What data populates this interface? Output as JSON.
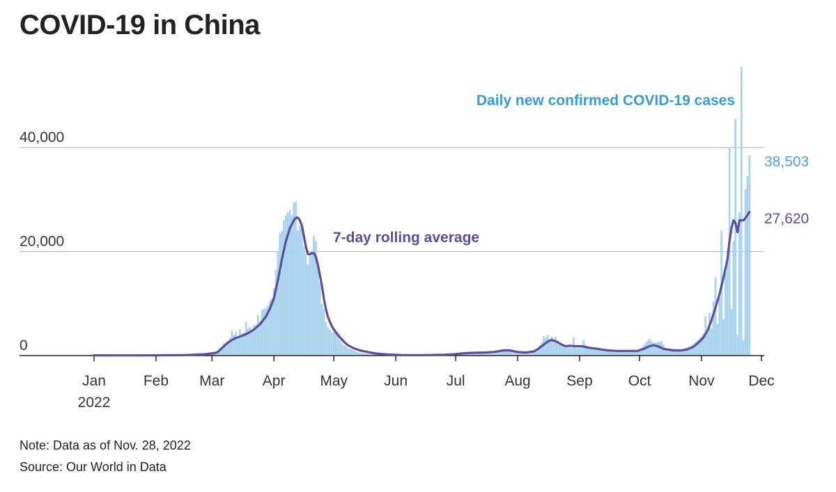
{
  "title": "COVID-19 in China",
  "note": "Note: Data as of Nov. 28, 2022",
  "source": "Source: Our World in Data",
  "colors": {
    "bars": "#a9d3ef",
    "line": "#5b4e9c",
    "bar_label": "#3a9ad9",
    "grid": "#bdbdbd",
    "axis": "#222222"
  },
  "chart_data": {
    "type": "bar+line",
    "title": "COVID-19 in China",
    "xlabel": "",
    "ylabel": "",
    "ylim": [
      0,
      55000
    ],
    "grid": true,
    "y_ticks": [
      {
        "value": 0,
        "label": "0"
      },
      {
        "value": 20000,
        "label": "20,000"
      },
      {
        "value": 40000,
        "label": "40,000"
      }
    ],
    "x_ticks": [
      {
        "day": 0,
        "label": "Jan",
        "sublabel": "2022"
      },
      {
        "day": 31,
        "label": "Feb"
      },
      {
        "day": 59,
        "label": "Mar"
      },
      {
        "day": 90,
        "label": "Apr"
      },
      {
        "day": 120,
        "label": "May"
      },
      {
        "day": 151,
        "label": "Jun"
      },
      {
        "day": 181,
        "label": "Jul"
      },
      {
        "day": 212,
        "label": "Aug"
      },
      {
        "day": 243,
        "label": "Sep"
      },
      {
        "day": 273,
        "label": "Oct"
      },
      {
        "day": 304,
        "label": "Nov"
      },
      {
        "day": 334,
        "label": "Dec"
      }
    ],
    "series": [
      {
        "name": "Daily new confirmed COVID-19 cases",
        "type": "bar",
        "label": "Daily new confirmed COVID-19 cases",
        "end_label": "38,503",
        "points": [
          [
            0,
            50
          ],
          [
            5,
            60
          ],
          [
            10,
            80
          ],
          [
            15,
            90
          ],
          [
            20,
            60
          ],
          [
            25,
            50
          ],
          [
            30,
            60
          ],
          [
            35,
            70
          ],
          [
            40,
            80
          ],
          [
            45,
            100
          ],
          [
            50,
            120
          ],
          [
            55,
            200
          ],
          [
            58,
            300
          ],
          [
            60,
            350
          ],
          [
            62,
            600
          ],
          [
            63,
            1000
          ],
          [
            64,
            1400
          ],
          [
            65,
            2400
          ],
          [
            66,
            2000
          ],
          [
            67,
            2800
          ],
          [
            68,
            3400
          ],
          [
            69,
            4800
          ],
          [
            70,
            4000
          ],
          [
            71,
            4500
          ],
          [
            72,
            3500
          ],
          [
            73,
            5000
          ],
          [
            74,
            4200
          ],
          [
            75,
            4400
          ],
          [
            76,
            6500
          ],
          [
            77,
            5200
          ],
          [
            78,
            5500
          ],
          [
            79,
            4800
          ],
          [
            80,
            5800
          ],
          [
            81,
            6000
          ],
          [
            82,
            7800
          ],
          [
            83,
            6600
          ],
          [
            84,
            8800
          ],
          [
            85,
            9000
          ],
          [
            86,
            9200
          ],
          [
            87,
            9600
          ],
          [
            88,
            10500
          ],
          [
            89,
            11000
          ],
          [
            90,
            13000
          ],
          [
            91,
            16500
          ],
          [
            92,
            20000
          ],
          [
            93,
            23500
          ],
          [
            94,
            24000
          ],
          [
            95,
            26000
          ],
          [
            96,
            27000
          ],
          [
            97,
            27500
          ],
          [
            98,
            28000
          ],
          [
            99,
            27000
          ],
          [
            100,
            29500
          ],
          [
            101,
            29500
          ],
          [
            102,
            24000
          ],
          [
            103,
            25000
          ],
          [
            104,
            24500
          ],
          [
            105,
            21000
          ],
          [
            106,
            19500
          ],
          [
            107,
            17500
          ],
          [
            108,
            19500
          ],
          [
            109,
            20000
          ],
          [
            110,
            23000
          ],
          [
            111,
            22000
          ],
          [
            112,
            18000
          ],
          [
            113,
            14000
          ],
          [
            114,
            10000
          ],
          [
            115,
            9000
          ],
          [
            116,
            6500
          ],
          [
            117,
            5500
          ],
          [
            118,
            5000
          ],
          [
            119,
            4500
          ],
          [
            120,
            4500
          ],
          [
            121,
            4300
          ],
          [
            122,
            4100
          ],
          [
            123,
            3000
          ],
          [
            124,
            2400
          ],
          [
            125,
            2000
          ],
          [
            126,
            1800
          ],
          [
            127,
            1400
          ],
          [
            128,
            1300
          ],
          [
            129,
            1200
          ],
          [
            130,
            1000
          ],
          [
            132,
            700
          ],
          [
            134,
            500
          ],
          [
            137,
            400
          ],
          [
            140,
            300
          ],
          [
            145,
            200
          ],
          [
            150,
            150
          ],
          [
            155,
            100
          ],
          [
            160,
            100
          ],
          [
            165,
            100
          ],
          [
            170,
            120
          ],
          [
            175,
            150
          ],
          [
            180,
            250
          ],
          [
            185,
            400
          ],
          [
            190,
            500
          ],
          [
            195,
            500
          ],
          [
            200,
            600
          ],
          [
            203,
            900
          ],
          [
            205,
            1100
          ],
          [
            208,
            1200
          ],
          [
            210,
            1000
          ],
          [
            212,
            600
          ],
          [
            215,
            500
          ],
          [
            218,
            700
          ],
          [
            220,
            1000
          ],
          [
            222,
            1500
          ],
          [
            224,
            2500
          ],
          [
            225,
            3800
          ],
          [
            226,
            3500
          ],
          [
            227,
            4000
          ],
          [
            228,
            3200
          ],
          [
            229,
            3700
          ],
          [
            230,
            3000
          ],
          [
            231,
            3600
          ],
          [
            232,
            2500
          ],
          [
            233,
            2000
          ],
          [
            234,
            1800
          ],
          [
            235,
            1700
          ],
          [
            236,
            1500
          ],
          [
            237,
            1600
          ],
          [
            238,
            1800
          ],
          [
            239,
            1400
          ],
          [
            240,
            3500
          ],
          [
            241,
            1600
          ],
          [
            242,
            1400
          ],
          [
            243,
            2000
          ],
          [
            244,
            1500
          ],
          [
            245,
            3000
          ],
          [
            246,
            2000
          ],
          [
            247,
            1800
          ],
          [
            248,
            1700
          ],
          [
            250,
            1500
          ],
          [
            255,
            1200
          ],
          [
            260,
            900
          ],
          [
            265,
            900
          ],
          [
            270,
            1000
          ],
          [
            272,
            1000
          ],
          [
            274,
            1500
          ],
          [
            276,
            2500
          ],
          [
            278,
            3200
          ],
          [
            280,
            2400
          ],
          [
            282,
            2600
          ],
          [
            284,
            2800
          ],
          [
            286,
            1500
          ],
          [
            288,
            1200
          ],
          [
            290,
            1000
          ],
          [
            292,
            1000
          ],
          [
            294,
            1200
          ],
          [
            296,
            1500
          ],
          [
            298,
            1800
          ],
          [
            300,
            2300
          ],
          [
            302,
            2900
          ],
          [
            304,
            3700
          ],
          [
            305,
            4300
          ],
          [
            306,
            7500
          ],
          [
            307,
            4500
          ],
          [
            308,
            8200
          ],
          [
            309,
            5200
          ],
          [
            310,
            10500
          ],
          [
            311,
            15000
          ],
          [
            312,
            6000
          ],
          [
            313,
            11000
          ],
          [
            314,
            24000
          ],
          [
            315,
            7000
          ],
          [
            316,
            16000
          ],
          [
            317,
            18000
          ],
          [
            318,
            40000
          ],
          [
            319,
            9000
          ],
          [
            320,
            22000
          ],
          [
            321,
            45500
          ],
          [
            322,
            4000
          ],
          [
            323,
            27500
          ],
          [
            324,
            55500
          ],
          [
            325,
            3000
          ],
          [
            326,
            32000
          ],
          [
            327,
            34500
          ],
          [
            328,
            38503
          ]
        ]
      },
      {
        "name": "7-day rolling average",
        "type": "line",
        "label": "7-day rolling average",
        "end_label": "27,620",
        "points": [
          [
            0,
            50
          ],
          [
            15,
            40
          ],
          [
            30,
            60
          ],
          [
            45,
            100
          ],
          [
            55,
            250
          ],
          [
            60,
            450
          ],
          [
            62,
            700
          ],
          [
            63,
            1100
          ],
          [
            65,
            1800
          ],
          [
            67,
            2500
          ],
          [
            69,
            3000
          ],
          [
            71,
            3400
          ],
          [
            74,
            3800
          ],
          [
            77,
            4300
          ],
          [
            80,
            5000
          ],
          [
            83,
            6000
          ],
          [
            86,
            7500
          ],
          [
            88,
            9000
          ],
          [
            90,
            11000
          ],
          [
            92,
            14500
          ],
          [
            94,
            18500
          ],
          [
            96,
            22000
          ],
          [
            98,
            24500
          ],
          [
            100,
            26000
          ],
          [
            101,
            26500
          ],
          [
            102,
            26500
          ],
          [
            103,
            26000
          ],
          [
            104,
            25000
          ],
          [
            105,
            23000
          ],
          [
            106,
            21000
          ],
          [
            107,
            19500
          ],
          [
            108,
            19500
          ],
          [
            109,
            19700
          ],
          [
            110,
            19700
          ],
          [
            111,
            19000
          ],
          [
            112,
            17500
          ],
          [
            113,
            15500
          ],
          [
            114,
            13500
          ],
          [
            115,
            11000
          ],
          [
            116,
            9000
          ],
          [
            117,
            7500
          ],
          [
            118,
            6500
          ],
          [
            119,
            5700
          ],
          [
            120,
            5000
          ],
          [
            122,
            4000
          ],
          [
            125,
            2700
          ],
          [
            127,
            2000
          ],
          [
            130,
            1400
          ],
          [
            133,
            1000
          ],
          [
            137,
            700
          ],
          [
            141,
            400
          ],
          [
            147,
            200
          ],
          [
            155,
            100
          ],
          [
            165,
            100
          ],
          [
            175,
            150
          ],
          [
            180,
            250
          ],
          [
            185,
            450
          ],
          [
            190,
            550
          ],
          [
            196,
            600
          ],
          [
            200,
            700
          ],
          [
            205,
            1000
          ],
          [
            208,
            1000
          ],
          [
            212,
            700
          ],
          [
            216,
            600
          ],
          [
            220,
            800
          ],
          [
            222,
            1200
          ],
          [
            224,
            1800
          ],
          [
            226,
            2400
          ],
          [
            228,
            2900
          ],
          [
            229,
            3000
          ],
          [
            230,
            2900
          ],
          [
            232,
            2600
          ],
          [
            234,
            2100
          ],
          [
            236,
            1800
          ],
          [
            238,
            1900
          ],
          [
            241,
            1800
          ],
          [
            244,
            1800
          ],
          [
            248,
            1500
          ],
          [
            252,
            1300
          ],
          [
            257,
            1000
          ],
          [
            262,
            900
          ],
          [
            268,
            900
          ],
          [
            272,
            900
          ],
          [
            275,
            1300
          ],
          [
            278,
            1800
          ],
          [
            280,
            2000
          ],
          [
            282,
            1800
          ],
          [
            285,
            1300
          ],
          [
            290,
            1000
          ],
          [
            294,
            1000
          ],
          [
            297,
            1200
          ],
          [
            300,
            1700
          ],
          [
            303,
            2700
          ],
          [
            305,
            3500
          ],
          [
            307,
            4800
          ],
          [
            309,
            6800
          ],
          [
            311,
            9200
          ],
          [
            313,
            11800
          ],
          [
            315,
            15000
          ],
          [
            317,
            18500
          ],
          [
            318,
            22000
          ],
          [
            319,
            24500
          ],
          [
            320,
            26000
          ],
          [
            321,
            25500
          ],
          [
            322,
            23700
          ],
          [
            323,
            26000
          ],
          [
            325,
            26000
          ],
          [
            326,
            26500
          ],
          [
            327,
            27000
          ],
          [
            328,
            27620
          ]
        ]
      }
    ]
  }
}
